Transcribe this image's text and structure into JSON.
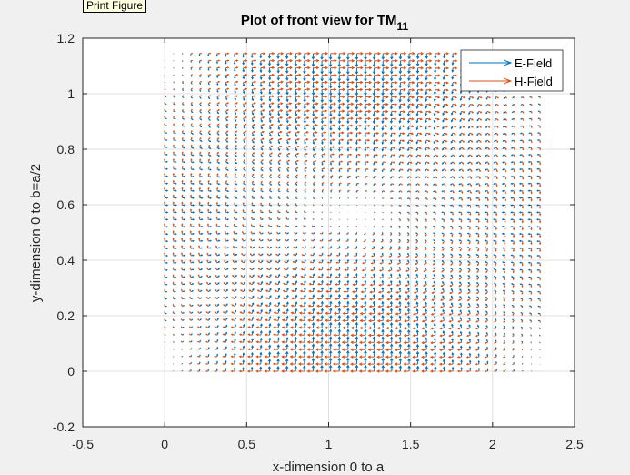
{
  "tooltip": {
    "text": "Print Figure"
  },
  "chart_data": {
    "type": "quiver",
    "title": "Plot of front view for TM",
    "title_subscript": "11",
    "xlabel": "x-dimension 0 to a",
    "ylabel": "y-dimension 0 to b=a/2",
    "xlim": [
      -0.5,
      2.5
    ],
    "ylim": [
      -0.2,
      1.2
    ],
    "xticks": [
      -0.5,
      0,
      0.5,
      1,
      1.5,
      2,
      2.5
    ],
    "xtick_labels": [
      "-0.5",
      "0",
      "0.5",
      "1",
      "1.5",
      "2",
      "2.5"
    ],
    "yticks": [
      -0.2,
      0,
      0.2,
      0.4,
      0.6,
      0.8,
      1,
      1.2
    ],
    "ytick_labels": [
      "-0.2",
      "0",
      "0.2",
      "0.4",
      "0.6",
      "0.8",
      "1",
      "1.2"
    ],
    "grid": true,
    "legend_location": "top-right",
    "grid_domain": {
      "x": [
        0,
        2.29
      ],
      "y": [
        0,
        1.145
      ],
      "nx": 44,
      "ny": 45
    },
    "series": [
      {
        "name": "E-Field",
        "color": "#0072bd"
      },
      {
        "name": "H-Field",
        "color": "#d95319"
      }
    ]
  }
}
